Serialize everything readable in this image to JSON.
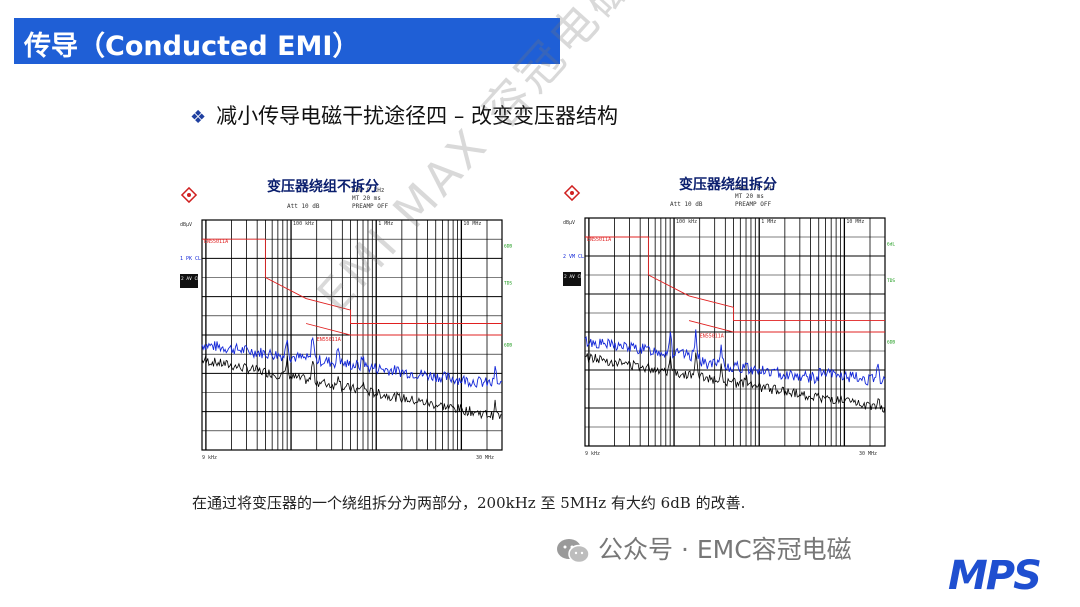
{
  "header": {
    "title": "传导（Conducted EMI）"
  },
  "subtitle": {
    "bullet": "❖",
    "text": "减小传导电磁干扰途径四 – 改变变压器结构"
  },
  "charts": [
    {
      "title": "变压器绕组不拆分",
      "rbw": "RBW   9 kHz",
      "mt": "MT   20 ms",
      "att": "Att 10 dB",
      "preamp": "PREAMP OFF",
      "unit": "dBµV",
      "top_label": "120",
      "limit_label": "EN55011A",
      "limit_label2": "EN55011A",
      "trace1": "1 PK CLRWR",
      "trace2": "2 AV CLRWR",
      "freq_ticks": [
        "100 kHz",
        "1 MHz",
        "10 MHz"
      ],
      "right_labels": [
        "6DB",
        "TDS",
        "6DB"
      ],
      "x_start": "9 kHz",
      "x_end": "30 MHz"
    },
    {
      "title": "变压器绕组拆分",
      "rbw": "RBW   120 kHz",
      "mt": "MT   20 ms",
      "att": "Att 10 dB",
      "preamp": "PREAMP OFF",
      "unit": "dBµV",
      "top_label": "120",
      "limit_label": "EN55011A",
      "limit_label2": "EN55011A",
      "trace1": "2 VM CLRWR",
      "trace2": "2 AV CLRWR",
      "freq_ticks": [
        "100 kHz",
        "1 MHz",
        "10 MHz"
      ],
      "right_labels": [
        "6dL",
        "TDS",
        "6DB"
      ],
      "x_start": "9 kHz",
      "x_end": "30 MHz"
    }
  ],
  "caption": "在通过将变压器的一个绕组拆分为两部分，200kHz 至 5MHz 有大约 6dB 的改善.",
  "footer": {
    "text": "公众号 · EMC容冠电磁"
  },
  "logo": {
    "text": "MPS"
  },
  "watermark": {
    "text": "EMI MAX 容冠电磁"
  },
  "colors": {
    "accent": "#1f5fd6",
    "peak_trace": "#1428d8",
    "avg_trace": "#000000",
    "limit": "#e02020",
    "logo": "#1f4fd0"
  }
}
